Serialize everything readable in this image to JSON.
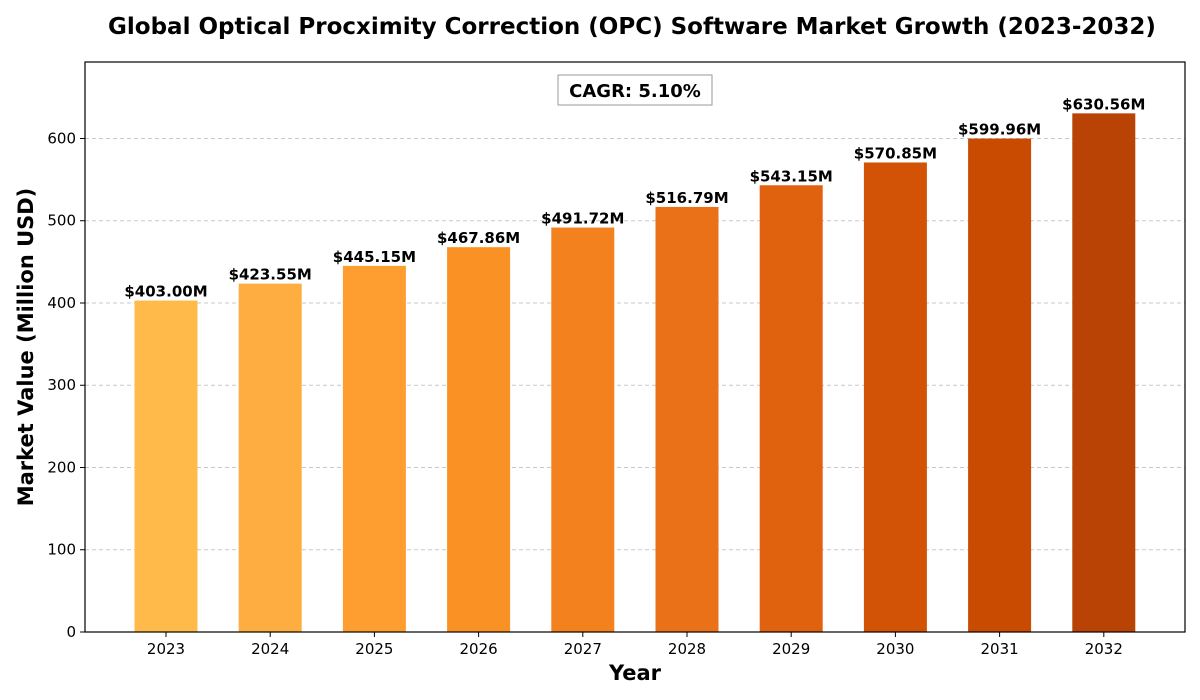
{
  "chart_data": {
    "type": "bar",
    "title": "Global Optical Procximity Correction (OPC) Software Market Growth (2023-2032)",
    "xlabel": "Year",
    "ylabel": "Market Value (Million USD)",
    "categories": [
      "2023",
      "2024",
      "2025",
      "2026",
      "2027",
      "2028",
      "2029",
      "2030",
      "2031",
      "2032"
    ],
    "values": [
      403.0,
      423.55,
      445.15,
      467.86,
      491.72,
      516.79,
      543.15,
      570.85,
      599.96,
      630.56
    ],
    "data_labels": [
      "$403.00M",
      "$423.55M",
      "$445.15M",
      "$467.86M",
      "$491.72M",
      "$516.79M",
      "$543.15M",
      "$570.85M",
      "$599.96M",
      "$630.56M"
    ],
    "ylim": [
      0,
      693
    ],
    "yticks": [
      0,
      100,
      200,
      300,
      400,
      500,
      600
    ],
    "grid": "horizontal-dashed",
    "annotation": "CAGR: 5.10%",
    "colors": [
      "#ffba4a",
      "#feae40",
      "#fe9e30",
      "#f99125",
      "#f3821e",
      "#eb7118",
      "#e0620f",
      "#d35306",
      "#c94b02",
      "#b84304"
    ]
  }
}
